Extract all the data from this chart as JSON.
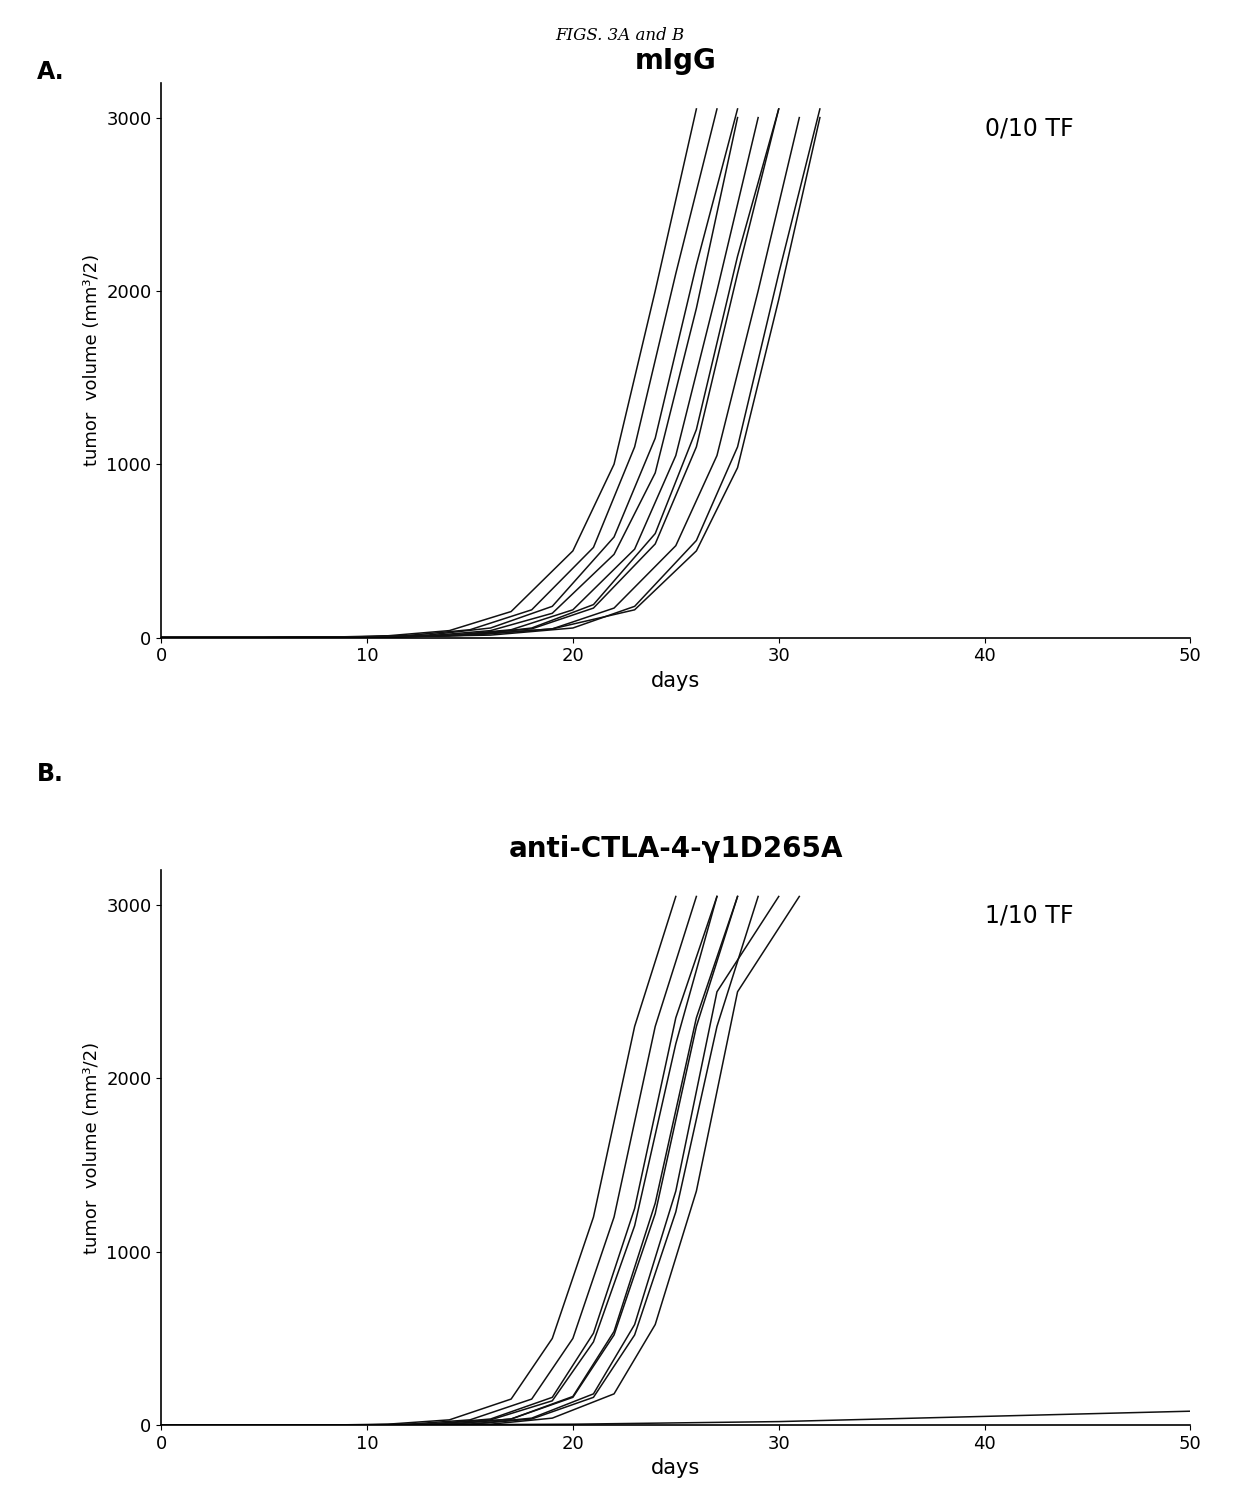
{
  "fig_title": "FIGS. 3A and B",
  "fig_title_fontsize": 12,
  "panel_A_label": "A.",
  "panel_B_label": "B.",
  "panel_A_title": "mIgG",
  "panel_B_title": "anti-CTLA-4-γ1D265A",
  "panel_A_annotation": "0/10 TF",
  "panel_B_annotation": "1/10 TF",
  "ylabel": "tumor  volume (mm³/2)",
  "xlabel": "days",
  "xlim": [
    0,
    50
  ],
  "ylim": [
    0,
    3200
  ],
  "yticks": [
    0,
    1000,
    2000,
    3000
  ],
  "xticks": [
    0,
    10,
    20,
    30,
    40,
    50
  ],
  "line_color": "#111111",
  "background_color": "#ffffff",
  "panel_A_curves": [
    {
      "x": [
        0,
        5,
        8,
        11,
        14,
        17,
        20,
        22,
        24,
        26
      ],
      "y": [
        0,
        0,
        2,
        10,
        40,
        150,
        500,
        1000,
        2000,
        3050
      ]
    },
    {
      "x": [
        0,
        5,
        9,
        12,
        15,
        18,
        21,
        23,
        25,
        27
      ],
      "y": [
        0,
        0,
        2,
        12,
        45,
        160,
        520,
        1100,
        2100,
        3050
      ]
    },
    {
      "x": [
        0,
        5,
        9,
        13,
        16,
        19,
        22,
        24,
        26,
        28
      ],
      "y": [
        0,
        0,
        2,
        10,
        40,
        140,
        480,
        950,
        1900,
        3000
      ]
    },
    {
      "x": [
        0,
        5,
        10,
        13,
        16,
        19,
        22,
        24,
        26,
        28
      ],
      "y": [
        0,
        0,
        3,
        15,
        55,
        180,
        580,
        1150,
        2150,
        3050
      ]
    },
    {
      "x": [
        0,
        5,
        10,
        14,
        17,
        20,
        23,
        25,
        27,
        29
      ],
      "y": [
        0,
        0,
        3,
        12,
        45,
        160,
        510,
        1050,
        2000,
        3000
      ]
    },
    {
      "x": [
        0,
        5,
        10,
        14,
        18,
        21,
        24,
        26,
        28,
        30
      ],
      "y": [
        0,
        0,
        3,
        12,
        50,
        170,
        540,
        1100,
        2100,
        3050
      ]
    },
    {
      "x": [
        0,
        5,
        10,
        15,
        18,
        21,
        24,
        26,
        28,
        30
      ],
      "y": [
        0,
        0,
        3,
        14,
        55,
        190,
        600,
        1200,
        2200,
        3050
      ]
    },
    {
      "x": [
        0,
        5,
        11,
        15,
        19,
        22,
        25,
        27,
        29,
        31
      ],
      "y": [
        0,
        0,
        3,
        14,
        50,
        170,
        530,
        1050,
        2000,
        3000
      ]
    },
    {
      "x": [
        0,
        5,
        11,
        15,
        19,
        23,
        26,
        28,
        30,
        32
      ],
      "y": [
        0,
        0,
        3,
        14,
        50,
        160,
        500,
        980,
        1950,
        3000
      ]
    },
    {
      "x": [
        0,
        5,
        11,
        16,
        20,
        23,
        26,
        28,
        30,
        32
      ],
      "y": [
        0,
        0,
        3,
        14,
        55,
        180,
        560,
        1100,
        2100,
        3050
      ]
    }
  ],
  "panel_B_curves": [
    {
      "x": [
        0,
        8,
        11,
        14,
        17,
        19,
        21,
        23,
        25
      ],
      "y": [
        0,
        0,
        5,
        30,
        150,
        500,
        1200,
        2300,
        3050
      ]
    },
    {
      "x": [
        0,
        9,
        12,
        15,
        18,
        20,
        22,
        24,
        26
      ],
      "y": [
        0,
        0,
        5,
        30,
        150,
        500,
        1200,
        2300,
        3050
      ]
    },
    {
      "x": [
        0,
        9,
        13,
        16,
        19,
        21,
        23,
        25,
        27
      ],
      "y": [
        0,
        0,
        5,
        30,
        140,
        480,
        1150,
        2200,
        3050
      ]
    },
    {
      "x": [
        0,
        10,
        13,
        16,
        19,
        21,
        23,
        25,
        27
      ],
      "y": [
        0,
        0,
        5,
        35,
        160,
        530,
        1250,
        2350,
        3050
      ]
    },
    {
      "x": [
        0,
        10,
        14,
        17,
        20,
        22,
        24,
        26,
        28
      ],
      "y": [
        0,
        0,
        5,
        35,
        160,
        520,
        1220,
        2300,
        3050
      ]
    },
    {
      "x": [
        0,
        11,
        14,
        17,
        20,
        22,
        24,
        26,
        28
      ],
      "y": [
        0,
        0,
        5,
        35,
        165,
        540,
        1280,
        2350,
        3050
      ]
    },
    {
      "x": [
        0,
        11,
        15,
        18,
        21,
        23,
        25,
        27,
        29
      ],
      "y": [
        0,
        0,
        5,
        35,
        160,
        520,
        1230,
        2300,
        3050
      ]
    },
    {
      "x": [
        0,
        12,
        15,
        18,
        21,
        23,
        25,
        27,
        30
      ],
      "y": [
        0,
        0,
        5,
        40,
        180,
        580,
        1350,
        2500,
        3050
      ]
    },
    {
      "x": [
        0,
        12,
        16,
        19,
        22,
        24,
        26,
        28,
        31
      ],
      "y": [
        0,
        0,
        5,
        40,
        180,
        580,
        1350,
        2500,
        3050
      ]
    },
    {
      "x": [
        0,
        10,
        20,
        30,
        40,
        50
      ],
      "y": [
        0,
        0,
        5,
        20,
        50,
        80
      ]
    }
  ]
}
